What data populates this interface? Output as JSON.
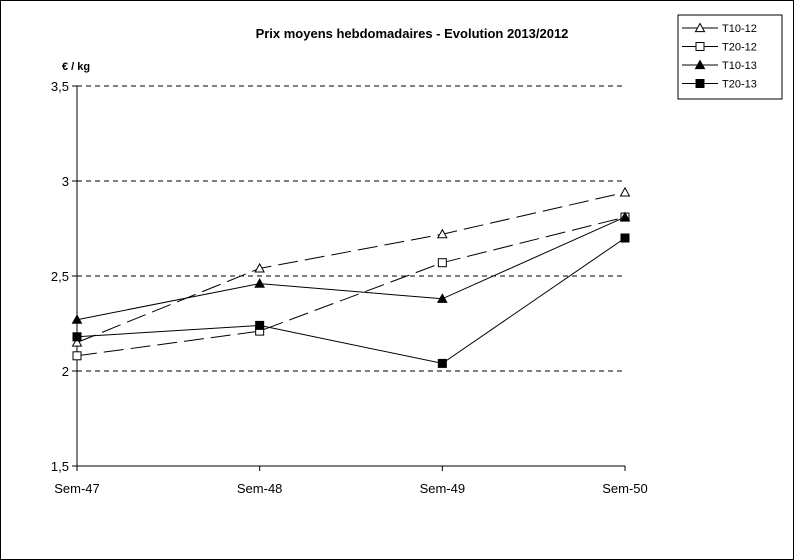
{
  "chart_data": {
    "type": "line",
    "title": "Prix moyens hebdomadaires - Evolution  2013/2012",
    "ylabel": "€ / kg",
    "xlabel": "",
    "categories": [
      "Sem-47",
      "Sem-48",
      "Sem-49",
      "Sem-50"
    ],
    "ylim": [
      1.5,
      3.5
    ],
    "yticks": [
      1.5,
      2,
      2.5,
      3,
      3.5
    ],
    "ytick_labels": [
      "1,5",
      "2",
      "2,5",
      "3",
      "3,5"
    ],
    "grid": "horizontal-dashed",
    "legend_position": "top-right",
    "series": [
      {
        "name": "T10-12",
        "values": [
          2.15,
          2.54,
          2.72,
          2.94
        ],
        "marker": "triangle-open",
        "dash": "long-dash"
      },
      {
        "name": "T20-12",
        "values": [
          2.08,
          2.21,
          2.57,
          2.81
        ],
        "marker": "square-open",
        "dash": "long-dash"
      },
      {
        "name": "T10-13",
        "values": [
          2.27,
          2.46,
          2.38,
          2.81
        ],
        "marker": "triangle-filled",
        "dash": "solid"
      },
      {
        "name": "T20-13",
        "values": [
          2.18,
          2.24,
          2.04,
          2.7
        ],
        "marker": "square-filled",
        "dash": "solid"
      }
    ]
  }
}
